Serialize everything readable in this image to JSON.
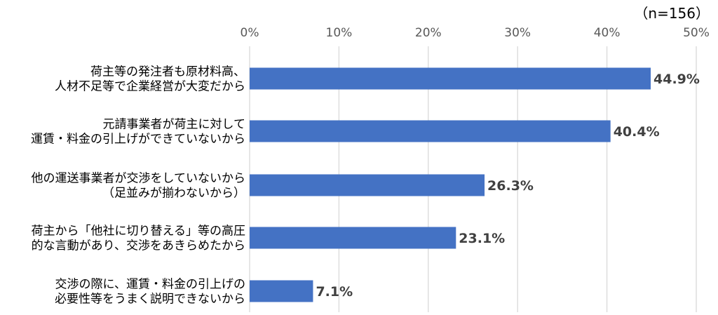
{
  "chart_data": {
    "type": "bar",
    "orientation": "horizontal",
    "sample_size": "（n=156）",
    "categories": [
      [
        "荷主等の発注者も原材料高、",
        "人材不足等で企業経営が大変だから"
      ],
      [
        "元請事業者が荷主に対して",
        "運賃・料金の引上げができていないから"
      ],
      [
        "他の運送事業者が交渉をしていないから",
        "（足並みが揃わないから）"
      ],
      [
        "荷主から「他社に切り替える」等の高圧",
        "的な言動があり、交渉をあきらめたから"
      ],
      [
        "交渉の際に、運賃・料金の引上げの",
        "必要性等をうまく説明できないから"
      ]
    ],
    "values": [
      44.9,
      40.4,
      26.3,
      23.1,
      7.1
    ],
    "value_labels": [
      "44.9%",
      "40.4%",
      "26.3%",
      "23.1%",
      "7.1%"
    ],
    "xlim": [
      0,
      50
    ],
    "x_ticks": [
      "0%",
      "10%",
      "20%",
      "30%",
      "40%",
      "50%"
    ],
    "x_axis_position": "top",
    "grid": true,
    "bar_color": "#4472C4",
    "grid_color": "#D9D9D9"
  }
}
